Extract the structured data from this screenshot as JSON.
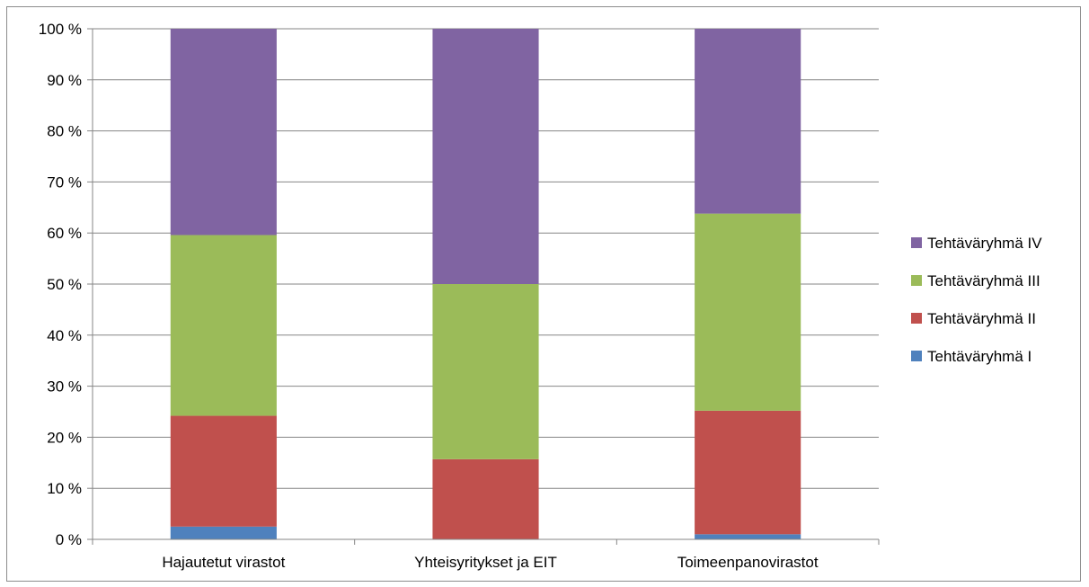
{
  "chart_data": {
    "type": "bar",
    "stacked": true,
    "percent_stacked": true,
    "categories": [
      "Hajautetut virastot",
      "Yhteisyritykset ja EIT",
      "Toimeenpanovirastot"
    ],
    "series": [
      {
        "name": "Tehtäväryhmä I",
        "color": "#4f81bd",
        "values": [
          2.5,
          0,
          1
        ]
      },
      {
        "name": "Tehtäväryhmä II",
        "color": "#c0504d",
        "values": [
          21.7,
          15.7,
          24.2
        ]
      },
      {
        "name": "Tehtäväryhmä III",
        "color": "#9bbb59",
        "values": [
          35.4,
          34.3,
          38.6
        ]
      },
      {
        "name": "Tehtäväryhmä IV",
        "color": "#8064a2",
        "values": [
          40.4,
          50.0,
          36.2
        ]
      }
    ],
    "y_ticks": [
      "0 %",
      "10 %",
      "20 %",
      "30 %",
      "40 %",
      "50 %",
      "60 %",
      "70 %",
      "80 %",
      "90 %",
      "100 %"
    ],
    "ylim": [
      0,
      100
    ],
    "title": "",
    "xlabel": "",
    "ylabel": "",
    "grid": true,
    "legend_position": "right"
  }
}
